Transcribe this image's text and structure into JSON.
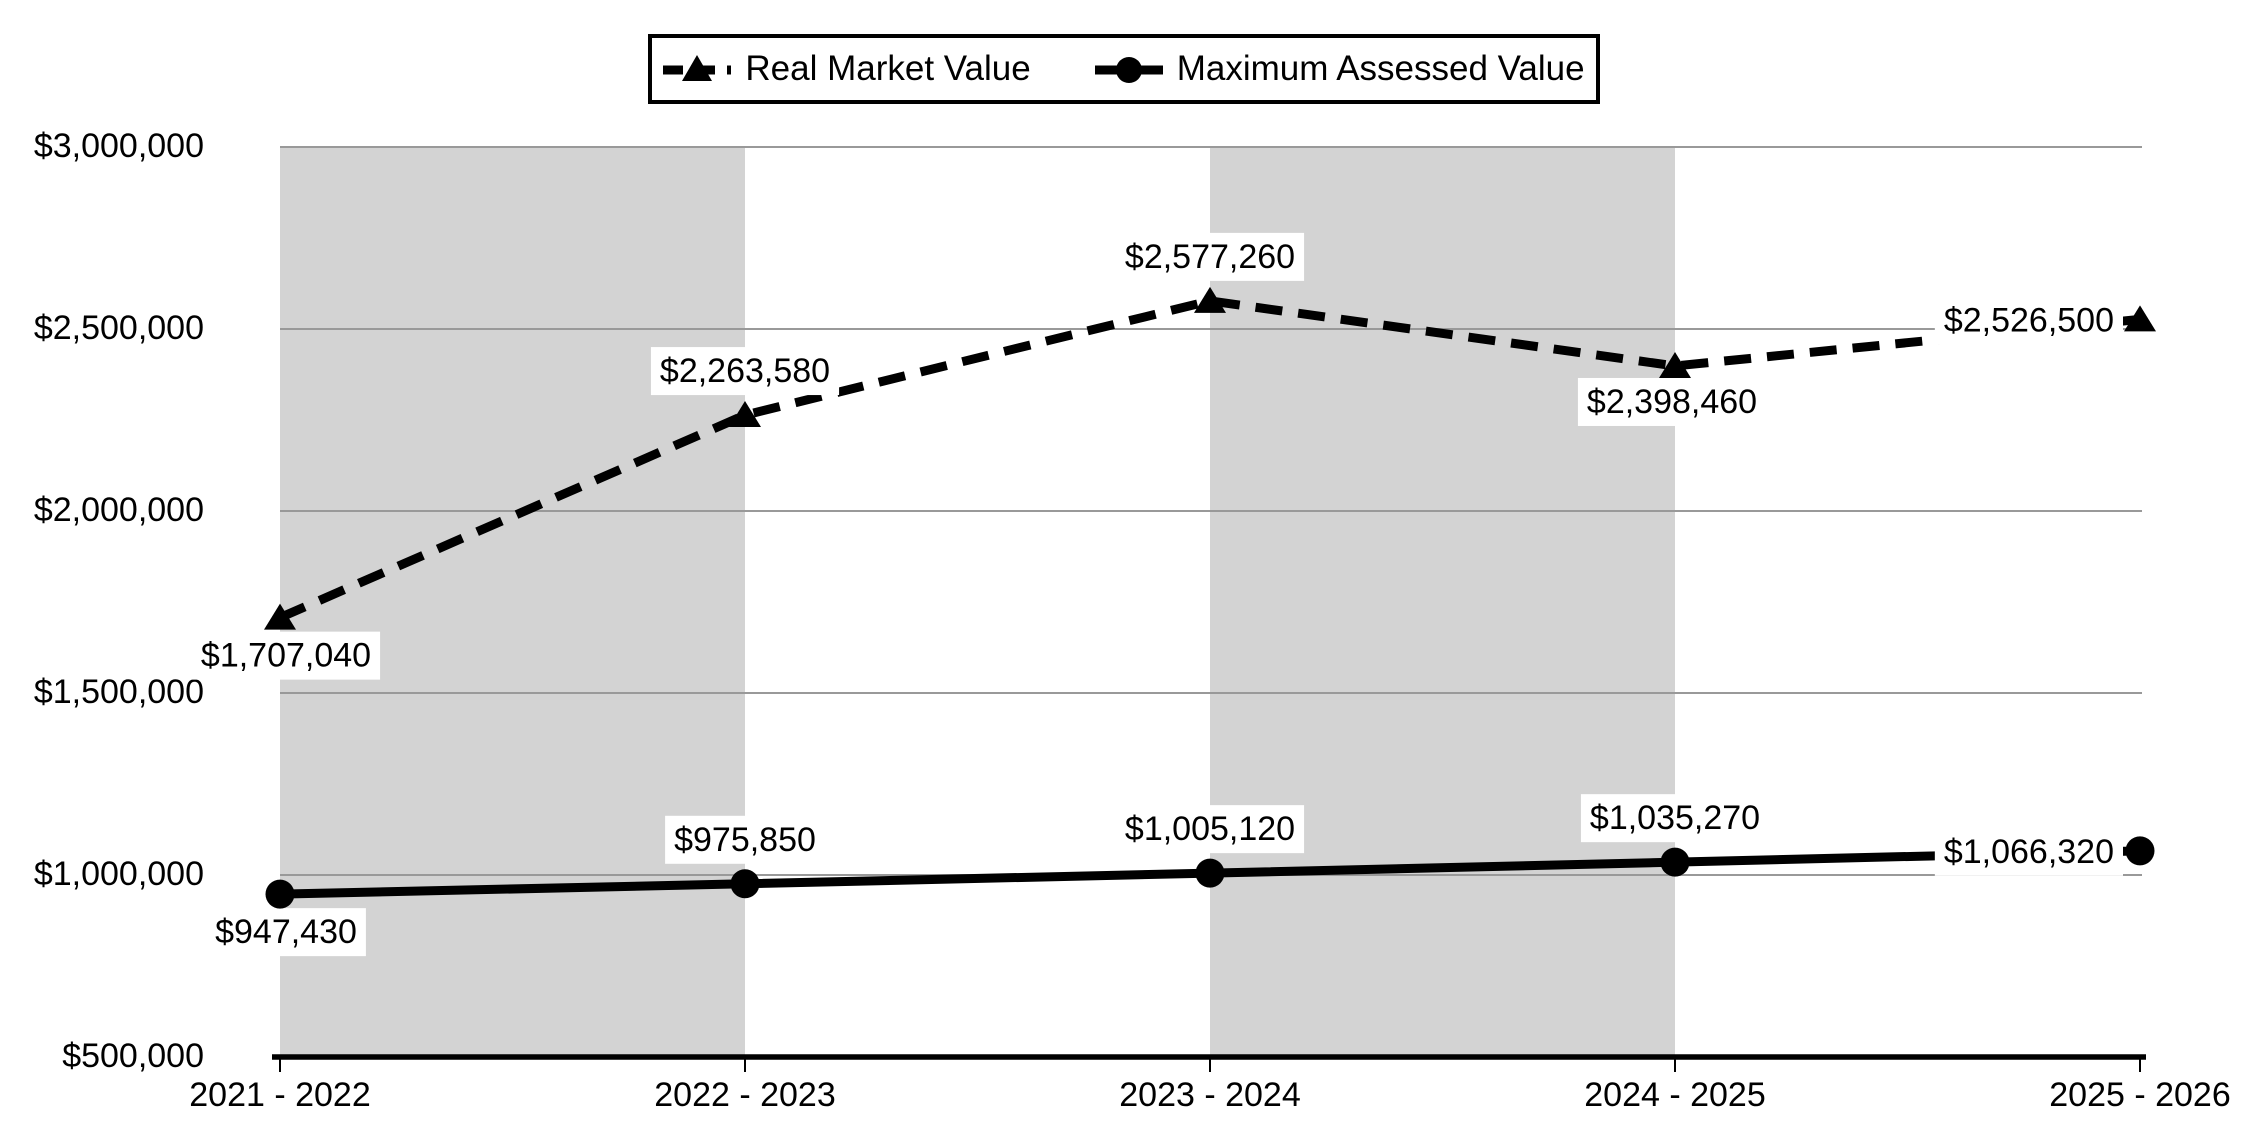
{
  "chart_data": {
    "type": "line",
    "title": "",
    "categories": [
      "2021 - 2022",
      "2022 - 2023",
      "2023 - 2024",
      "2024 - 2025",
      "2025 - 2026"
    ],
    "series": [
      {
        "name": "Real Market Value",
        "line_style": "dashed",
        "marker": "triangle",
        "values": [
          1707040,
          2263580,
          2577260,
          2398460,
          2526500
        ],
        "labels": [
          "$1,707,040",
          "$2,263,580",
          "$2,577,260",
          "$2,398,460",
          "$2,526,500"
        ],
        "label_placement": [
          "below-right",
          "above",
          "above",
          "below",
          "left"
        ]
      },
      {
        "name": "Maximum Assessed Value",
        "line_style": "solid",
        "marker": "circle",
        "values": [
          947430,
          975850,
          1005120,
          1035270,
          1066320
        ],
        "labels": [
          "$947,430",
          "$975,850",
          "$1,005,120",
          "$1,035,270",
          "$1,066,320"
        ],
        "label_placement": [
          "below-right",
          "above",
          "above",
          "above",
          "left"
        ]
      }
    ],
    "y_axis": {
      "min": 500000,
      "max": 3000000,
      "tick_step": 500000,
      "tick_labels": [
        "$500,000",
        "$1,000,000",
        "$1,500,000",
        "$2,000,000",
        "$2,500,000",
        "$3,000,000"
      ]
    },
    "x_axis": {
      "tick_labels": [
        "2021 - 2022",
        "2022 - 2023",
        "2023 - 2024",
        "2024 - 2025",
        "2025 - 2026"
      ]
    },
    "shaded_band_intervals": [
      0,
      2
    ],
    "grid": "horizontal",
    "legend_position": "top",
    "colors": {
      "band": "#d3d3d3",
      "gridline": "#999999",
      "series": "#000000",
      "label_bg": "#ffffff",
      "text": "#000000",
      "background": "#ffffff"
    }
  }
}
